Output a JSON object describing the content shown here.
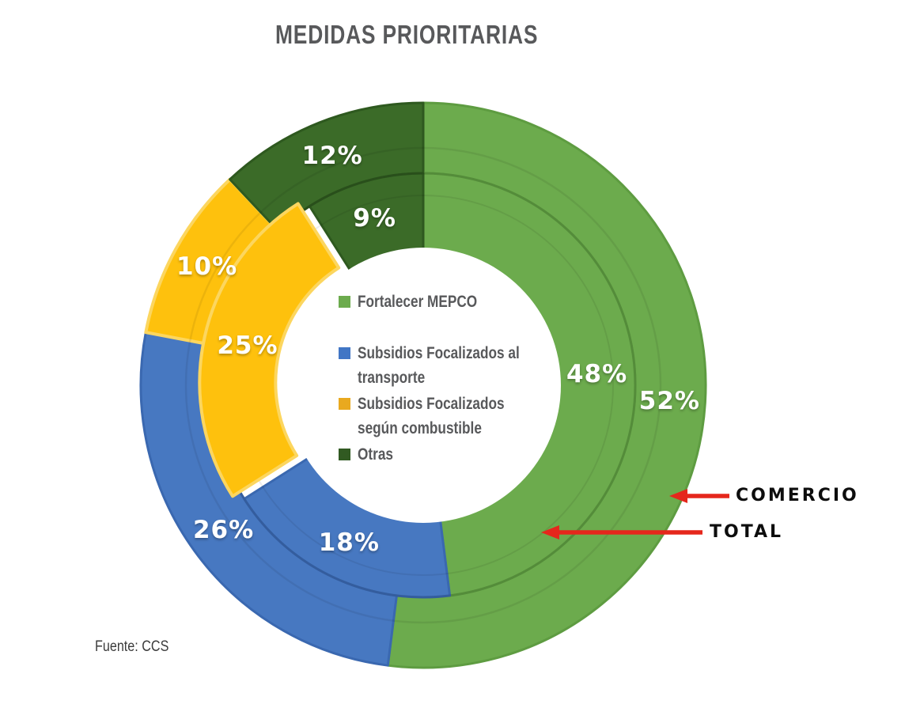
{
  "title": "MEDIDAS PRIORITARIAS",
  "source_note": "Fuente: CCS",
  "chart_data": {
    "type": "donut",
    "title": "MEDIDAS PRIORITARIAS",
    "unit": "%",
    "legend_position": "center",
    "categories": [
      "Fortalecer MEPCO",
      "Subsidios Focalizados al transporte",
      "Subsidios Focalizados según combustible",
      "Otras"
    ],
    "series": [
      {
        "name": "COMERCIO",
        "ring": "outer",
        "values": [
          52,
          26,
          10,
          12
        ]
      },
      {
        "name": "TOTAL",
        "ring": "inner",
        "values": [
          48,
          18,
          25,
          9
        ]
      }
    ],
    "colors": [
      "#6CAB4D",
      "#4778C1",
      "#FEC10D",
      "#3B6B28"
    ],
    "stroke_colors": [
      "#5E9C41",
      "#3A68B0",
      "#FCD65F",
      "#2E591F"
    ],
    "legend": {
      "items": [
        {
          "label": "Fortalecer MEPCO",
          "lines": [
            "Fortalecer MEPCO"
          ],
          "color": "#6CAB4D"
        },
        {
          "label": "Subsidios Focalizados al transporte",
          "lines": [
            "Subsidios Focalizados al",
            "transporte"
          ],
          "color": "#4176C5"
        },
        {
          "label": "Subsidios Focalizados según combustible",
          "lines": [
            "Subsidios Focalizados",
            "según combustible"
          ],
          "color": "#E9A91F"
        },
        {
          "label": "Otras",
          "lines": [
            "Otras"
          ],
          "color": "#315A22"
        }
      ]
    },
    "annotations": [
      {
        "text": "COMERCIO",
        "target_ring": "outer"
      },
      {
        "text": "TOTAL",
        "target_ring": "inner"
      }
    ],
    "arrow_color": "#E5271C"
  }
}
